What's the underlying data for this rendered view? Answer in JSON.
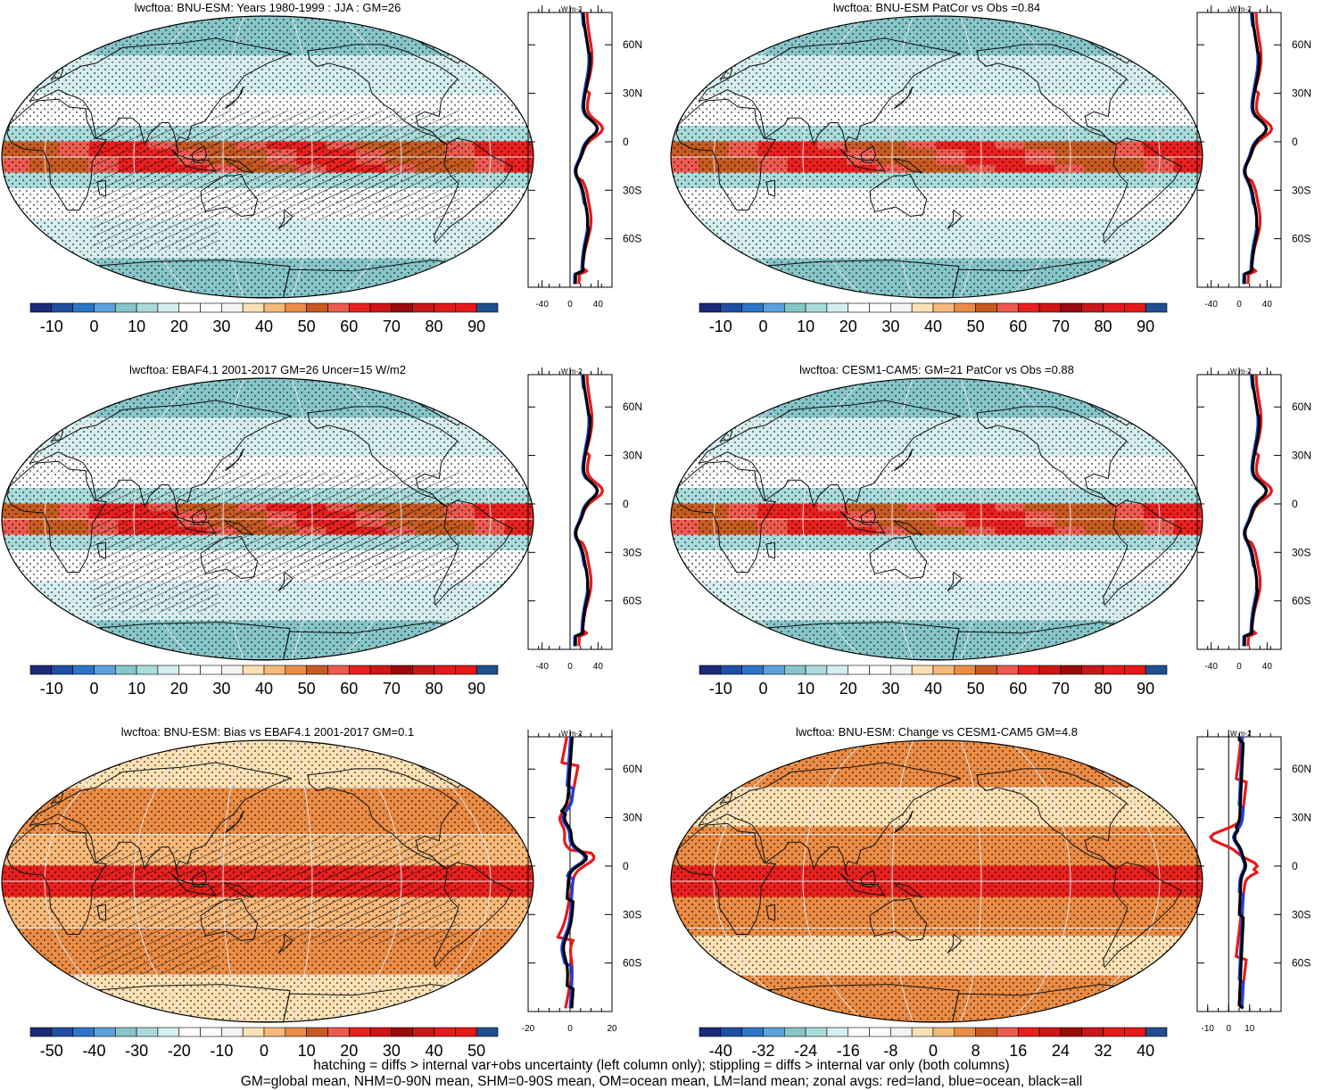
{
  "colors": {
    "land_line": "#111111",
    "zonal_land": "#e41a1c",
    "zonal_ocean": "#1f3fd8",
    "zonal_all": "#000000"
  },
  "full_field_scale": {
    "labels": [
      "-10",
      "0",
      "10",
      "20",
      "30",
      "40",
      "50",
      "60",
      "70",
      "80",
      "90"
    ],
    "colors": [
      "#1c2a7a",
      "#1f4fa3",
      "#2c76c7",
      "#5aa2dd",
      "#86c5c8",
      "#aadbdb",
      "#d5eef0",
      "#ffffff",
      "#ffffff",
      "#f4f4f4",
      "#fce1b5",
      "#f6b97a",
      "#ea8c45",
      "#c75a20",
      "#ee5a50",
      "#e8201e",
      "#d01515",
      "#9a0a0a",
      "#c8181a",
      "#e31a1c",
      "#e81818",
      "#1f4f8f"
    ]
  },
  "bias_scale": {
    "labels": [
      "-50",
      "-40",
      "-30",
      "-20",
      "-10",
      "0",
      "10",
      "20",
      "30",
      "40",
      "50"
    ],
    "colors": [
      "#1c2a7a",
      "#1f4fa3",
      "#2c76c7",
      "#5aa2dd",
      "#86c5c8",
      "#aadbdb",
      "#d5eef0",
      "#ffffff",
      "#ffffff",
      "#f4f4f4",
      "#fce1b5",
      "#f6b97a",
      "#ea8c45",
      "#c75a20",
      "#ee5a50",
      "#e8201e",
      "#d01515",
      "#9a0a0a",
      "#c8181a",
      "#e31a1c",
      "#e81818",
      "#1f4f8f"
    ]
  },
  "change_scale": {
    "labels": [
      "-40",
      "-32",
      "-24",
      "-16",
      "-8",
      "0",
      "8",
      "16",
      "24",
      "32",
      "40"
    ],
    "colors": [
      "#1c2a7a",
      "#1f4fa3",
      "#2c76c7",
      "#5aa2dd",
      "#86c5c8",
      "#aadbdb",
      "#d5eef0",
      "#ffffff",
      "#ffffff",
      "#f4f4f4",
      "#fce1b5",
      "#f6b97a",
      "#ea8c45",
      "#c75a20",
      "#ee5a50",
      "#e8201e",
      "#d01515",
      "#9a0a0a",
      "#c8181a",
      "#e31a1c",
      "#e81818",
      "#1f4f8f"
    ]
  },
  "lat_labels": [
    "60N",
    "30N",
    "0",
    "30S",
    "60S"
  ],
  "zonal_units": "W m-2",
  "panels": [
    {
      "id": "bnu-esm",
      "title": "lwcftoa: BNU-ESM: Years 1980-1999 : JJA : GM=26",
      "scale": "full_field_scale",
      "palette": "field",
      "hatched": true,
      "x_ticks": [
        "-40",
        "0",
        "40"
      ],
      "x_domain": [
        -60,
        60
      ]
    },
    {
      "id": "cesm-cor",
      "title": "lwcftoa: BNU-ESM PatCor vs Obs =0.84",
      "scale": "full_field_scale",
      "palette": "field",
      "hatched": false,
      "x_ticks": [
        "-40",
        "0",
        "40"
      ],
      "x_domain": [
        -60,
        60
      ]
    },
    {
      "id": "ebaf",
      "title": "lwcftoa: EBAF4.1 2001-2017 GM=26 Uncer=15 W/m2",
      "scale": "full_field_scale",
      "palette": "field",
      "hatched": true,
      "x_ticks": [
        "-40",
        "0",
        "40"
      ],
      "x_domain": [
        -60,
        60
      ]
    },
    {
      "id": "cesm",
      "title": "lwcftoa: CESM1-CAM5: GM=21 PatCor vs Obs =0.88",
      "scale": "full_field_scale",
      "palette": "field",
      "hatched": false,
      "x_ticks": [
        "-40",
        "0",
        "40"
      ],
      "x_domain": [
        -60,
        60
      ]
    },
    {
      "id": "bias",
      "title": "lwcftoa: BNU-ESM: Bias vs EBAF4.1 2001-2017 GM=0.1",
      "scale": "bias_scale",
      "palette": "bias",
      "hatched": true,
      "x_ticks": [
        "-20",
        "0",
        "20"
      ],
      "x_domain": [
        -20,
        20
      ]
    },
    {
      "id": "change",
      "title": "lwcftoa: BNU-ESM: Change vs CESM1-CAM5 GM=4.8",
      "scale": "change_scale",
      "palette": "change",
      "hatched": false,
      "x_ticks": [
        "-10",
        "0",
        "10"
      ],
      "x_domain": [
        -15,
        25
      ]
    }
  ],
  "caption_line1": "hatching = diffs > internal var+obs uncertainty (left column only); stippling = diffs > internal var only (both columns)",
  "caption_line2": "GM=global mean, NHM=0-90N mean, SHM=0-90S mean, OM=ocean mean, LM=land mean; zonal avgs: red=land, blue=ocean, black=all"
}
